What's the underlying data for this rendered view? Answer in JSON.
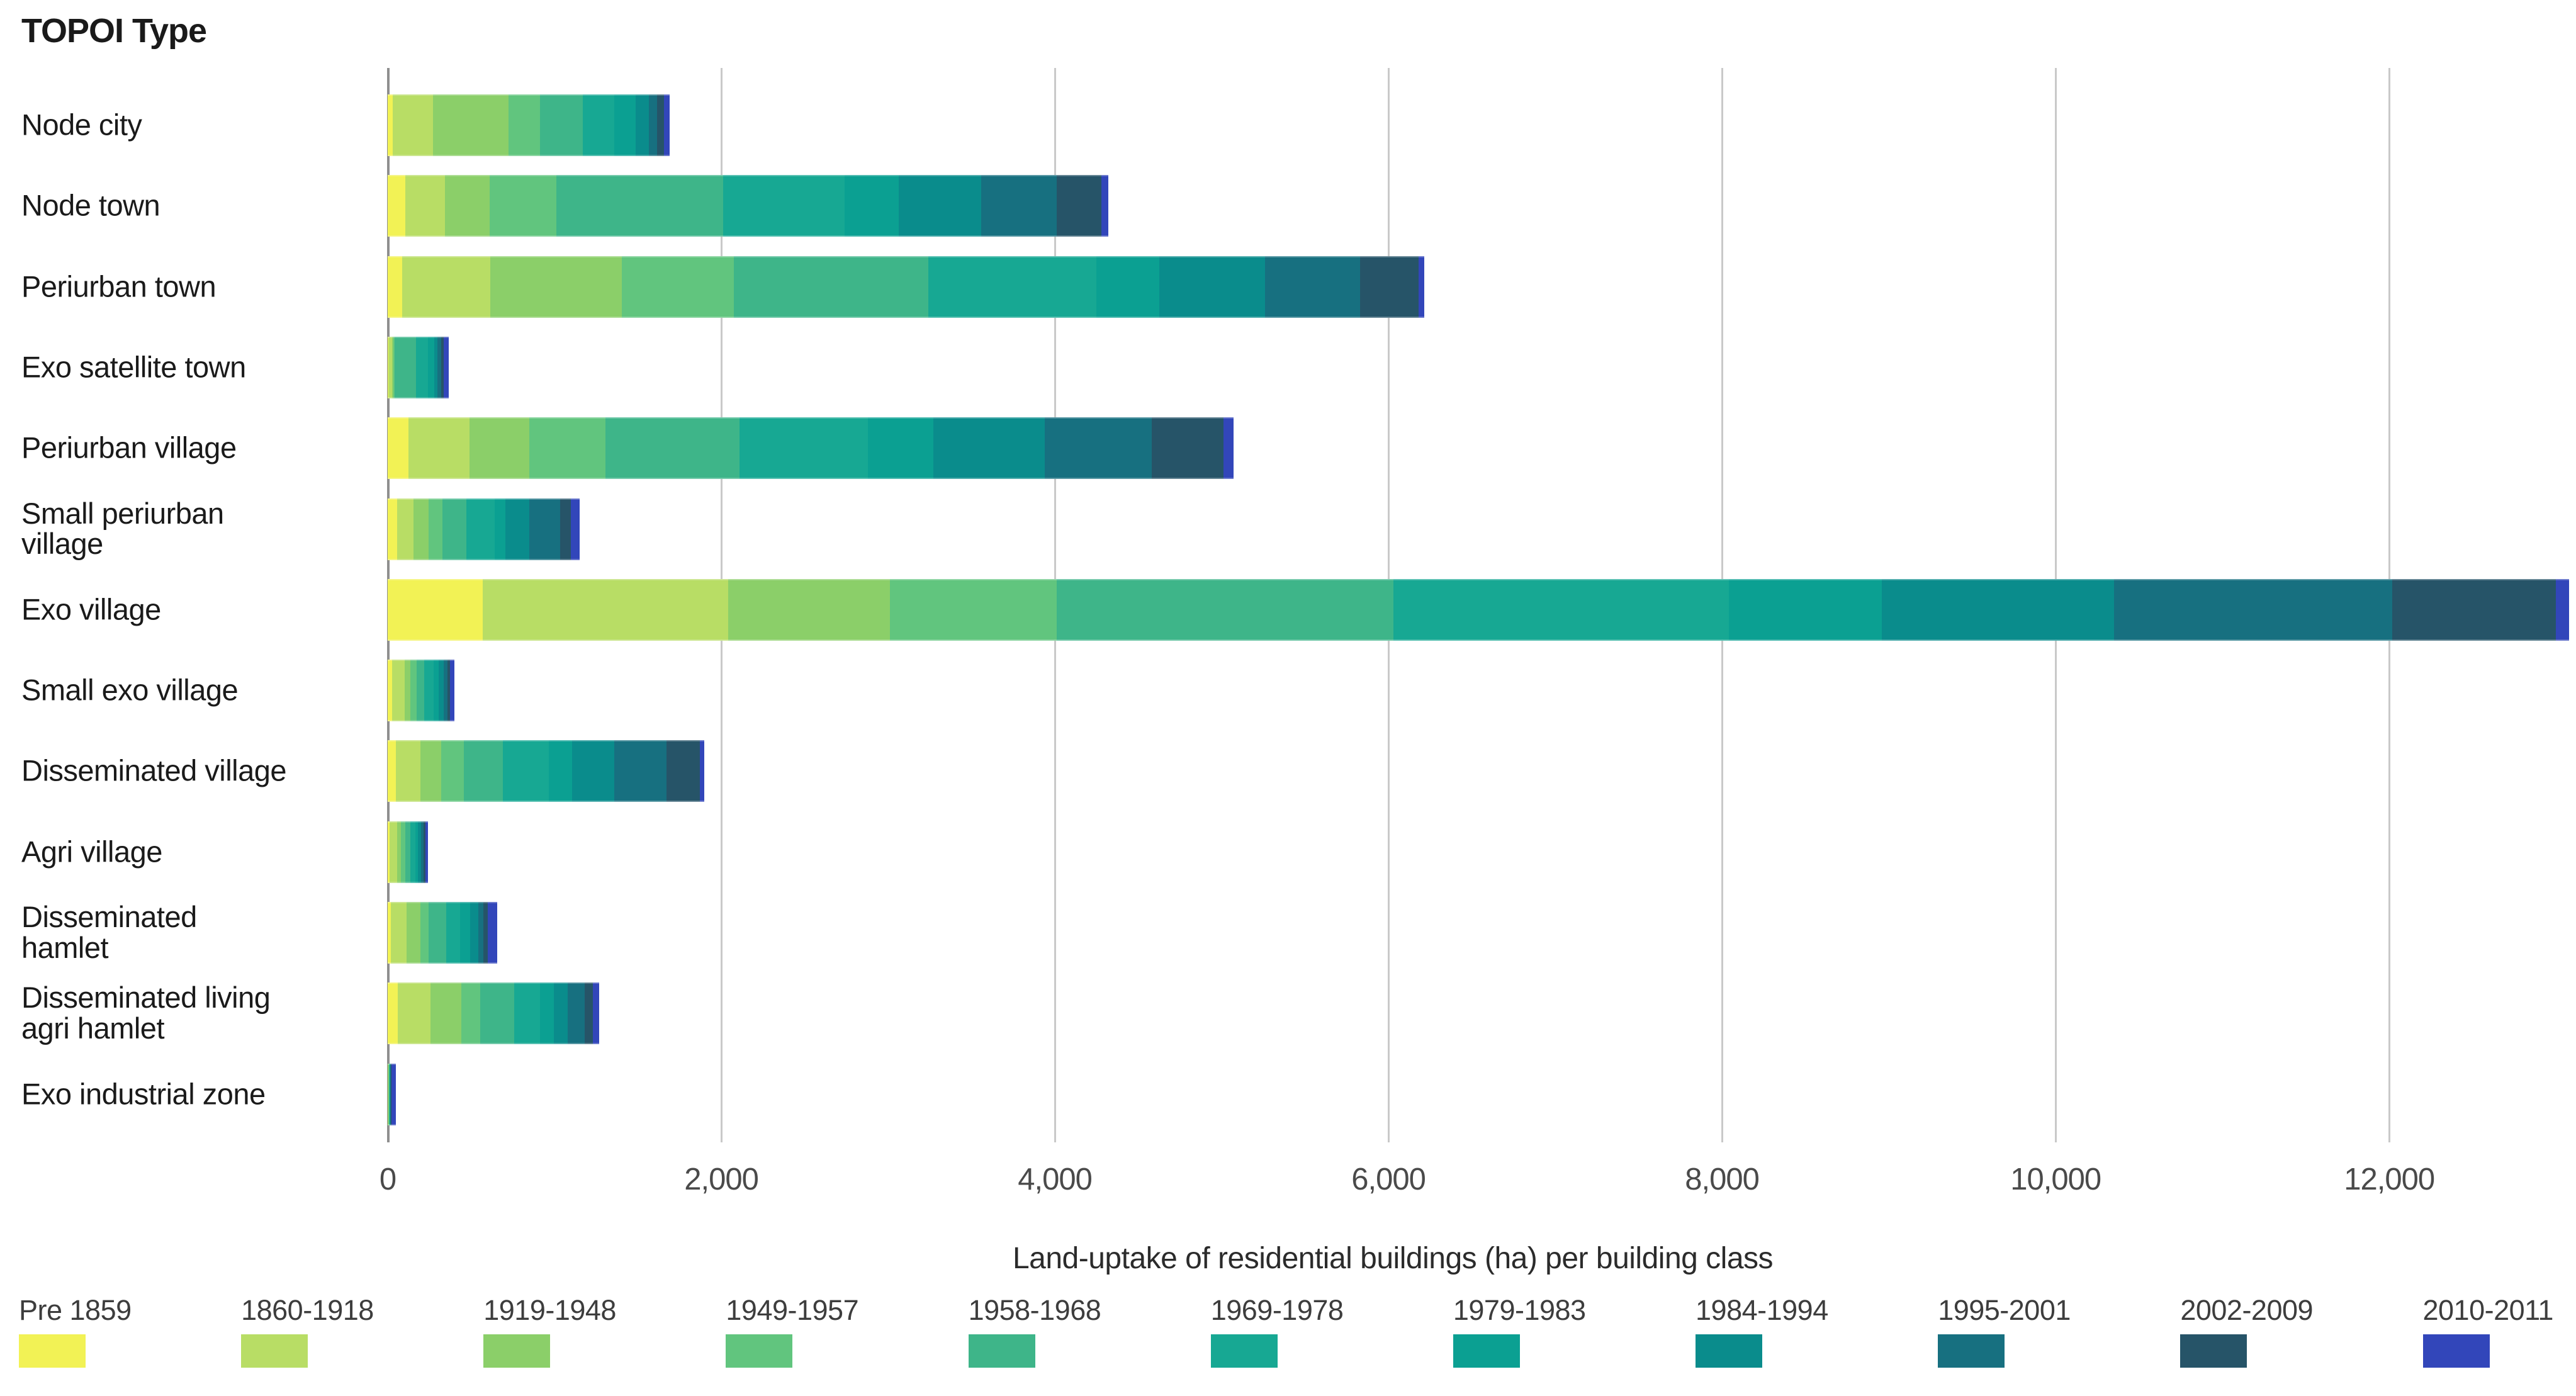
{
  "chart_data": {
    "type": "bar",
    "orientation": "horizontal-stacked",
    "title": "TOPOI Type",
    "xlabel": "Land-uptake of residential buildings (ha) per building class",
    "xlim": [
      0,
      13120
    ],
    "grid": "vertical",
    "legend_position": "bottom",
    "x_ticks": [
      {
        "value": 0,
        "label": "0"
      },
      {
        "value": 2000,
        "label": "2,000"
      },
      {
        "value": 4000,
        "label": "4,000"
      },
      {
        "value": 6000,
        "label": "6,000"
      },
      {
        "value": 8000,
        "label": "8,000"
      },
      {
        "value": 10000,
        "label": "10,000"
      },
      {
        "value": 12000,
        "label": "12,000"
      }
    ],
    "classes": [
      {
        "name": "Pre 1859",
        "color": "#f2f255"
      },
      {
        "name": "1860-1918",
        "color": "#b8dd65"
      },
      {
        "name": "1919-1948",
        "color": "#8bcf69"
      },
      {
        "name": "1949-1957",
        "color": "#61c57e"
      },
      {
        "name": "1958-1968",
        "color": "#3eb589"
      },
      {
        "name": "1969-1978",
        "color": "#17a893"
      },
      {
        "name": "1979-1983",
        "color": "#0ba092"
      },
      {
        "name": "1984-1994",
        "color": "#0a8c8c"
      },
      {
        "name": "1995-2001",
        "color": "#177080"
      },
      {
        "name": "2002-2009",
        "color": "#265468"
      },
      {
        "name": "2010-2011",
        "color": "#3246ba"
      }
    ],
    "categories": [
      "Node city",
      "Node town",
      "Periurban town",
      "Exo satellite town",
      "Periurban village",
      "Small periurban village",
      "Exo village",
      "Small exo village",
      "Disseminated village",
      "Agri village",
      "Disseminated hamlet",
      "Disseminated living agri hamlet",
      "Exo industrial zone"
    ],
    "category_label_lines": [
      [
        "Node city"
      ],
      [
        "Node town"
      ],
      [
        "Periurban town"
      ],
      [
        "Exo satellite town"
      ],
      [
        "Periurban village"
      ],
      [
        "Small periurban",
        "village"
      ],
      [
        "Exo village"
      ],
      [
        "Small exo village"
      ],
      [
        "Disseminated village"
      ],
      [
        "Agri village"
      ],
      [
        "Disseminated",
        "hamlet"
      ],
      [
        "Disseminated living",
        "agri hamlet"
      ],
      [
        "Exo industrial zone"
      ]
    ],
    "values_by_category": [
      [
        30,
        240,
        455,
        190,
        255,
        190,
        125,
        80,
        50,
        40,
        35
      ],
      [
        105,
        240,
        265,
        400,
        1000,
        730,
        325,
        495,
        450,
        270,
        40
      ],
      [
        85,
        530,
        790,
        670,
        1165,
        1010,
        375,
        635,
        570,
        350,
        35
      ],
      [
        5,
        20,
        10,
        5,
        130,
        70,
        40,
        20,
        20,
        15,
        30
      ],
      [
        125,
        365,
        360,
        455,
        805,
        770,
        390,
        670,
        640,
        430,
        60
      ],
      [
        55,
        100,
        90,
        85,
        140,
        170,
        65,
        145,
        185,
        65,
        50
      ],
      [
        570,
        1470,
        970,
        1000,
        2020,
        2010,
        920,
        1390,
        1670,
        980,
        80
      ],
      [
        25,
        75,
        35,
        40,
        45,
        55,
        30,
        30,
        25,
        15,
        25
      ],
      [
        50,
        145,
        125,
        135,
        235,
        275,
        140,
        255,
        310,
        200,
        30
      ],
      [
        10,
        45,
        25,
        25,
        30,
        30,
        15,
        20,
        15,
        10,
        15
      ],
      [
        20,
        95,
        80,
        50,
        105,
        85,
        60,
        50,
        30,
        25,
        55
      ],
      [
        60,
        195,
        185,
        115,
        205,
        155,
        80,
        85,
        100,
        50,
        40
      ],
      [
        0,
        3,
        2,
        2,
        3,
        3,
        2,
        2,
        2,
        3,
        28
      ]
    ]
  }
}
